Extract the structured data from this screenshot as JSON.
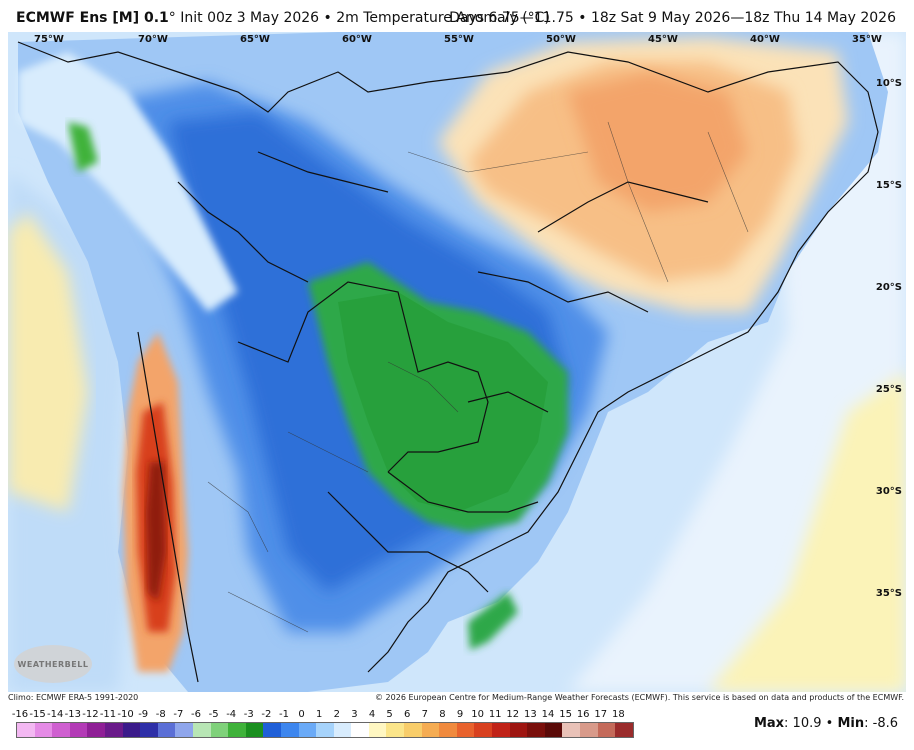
{
  "header": {
    "model": "ECMWF Ens [M] 0.1",
    "degree": "°",
    "title_rest": "Init 00z 3 May 2026 • 2m Temperature Anomaly (°C)",
    "right_title": "Days 6.75—11.75 • 18z Sat 9 May 2026—18z Thu 14 May 2026"
  },
  "map": {
    "lon_labels": [
      "75°W",
      "70°W",
      "65°W",
      "60°W",
      "55°W",
      "50°W",
      "45°W",
      "40°W",
      "35°W"
    ],
    "lat_labels": [
      "10°S",
      "15°S",
      "20°S",
      "25°S",
      "30°S",
      "35°S"
    ]
  },
  "footer": {
    "climo": "Climo: ECMWF ERA-5 1991-2020",
    "copyright": "© 2026 European Centre for Medium-Range Weather Forecasts (ECMWF). This service is based on data and products of the ECMWF.",
    "logo_text": "WEATHERBELL",
    "scale_values": [
      "-16",
      "-15",
      "-14",
      "-13",
      "-12",
      "-11",
      "-10",
      "-9",
      "-8",
      "-7",
      "-6",
      "-5",
      "-4",
      "-3",
      "-2",
      "-1",
      "0",
      "1",
      "2",
      "3",
      "4",
      "5",
      "6",
      "7",
      "8",
      "9",
      "10",
      "11",
      "12",
      "13",
      "14",
      "15",
      "16",
      "17",
      "18"
    ],
    "scale_colors": [
      "#f3b8f2",
      "#e58be6",
      "#cf5fd0",
      "#b33ab6",
      "#8f1f96",
      "#6a1a8a",
      "#3b1a8a",
      "#2e2fa8",
      "#5b6fd6",
      "#8fa6ec",
      "#b8e6b5",
      "#7fd17a",
      "#3fb23a",
      "#1a8f1f",
      "#1f5fd8",
      "#3d86ee",
      "#6aaaf7",
      "#a6d3fb",
      "#d8ecfd",
      "#ffffff",
      "#fff7c2",
      "#fbe58a",
      "#f8cd6a",
      "#f5ac52",
      "#f08a3e",
      "#e8622d",
      "#d8401f",
      "#c02217",
      "#9e1510",
      "#7a0f0b",
      "#5a0a08",
      "#e9c2b8",
      "#d89a8a",
      "#c46a5a",
      "#9a2b2b"
    ],
    "max_label": "Max",
    "max_value": ": 10.9",
    "min_label": "Min",
    "min_value": ": -8.6",
    "bullet": " • "
  }
}
